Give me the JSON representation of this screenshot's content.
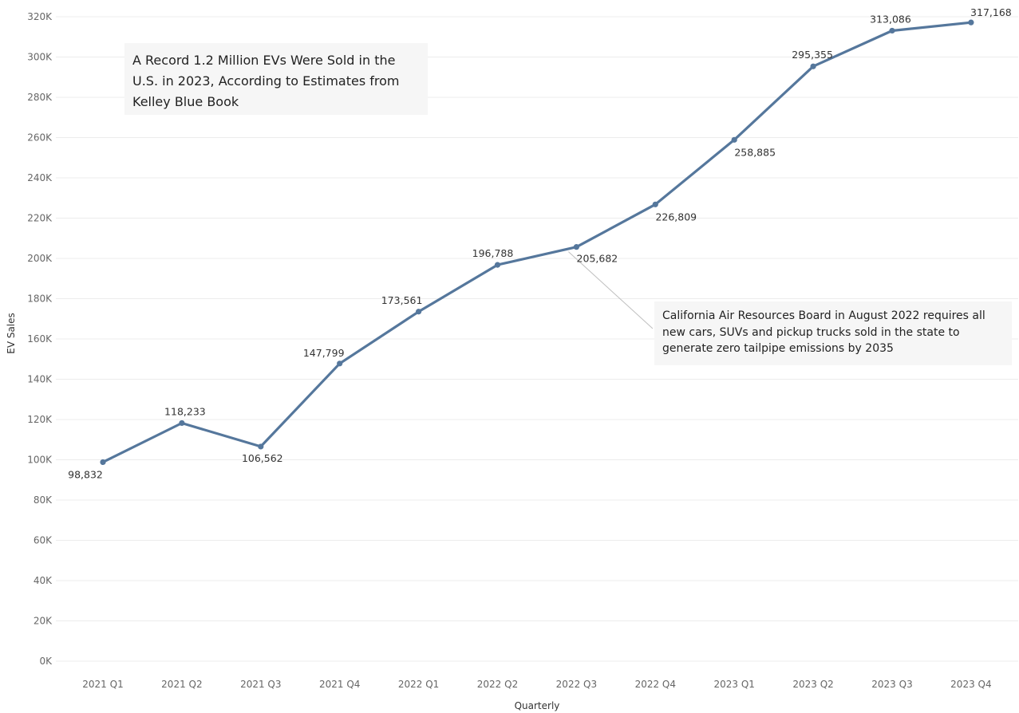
{
  "chart_data": {
    "type": "line",
    "title": "A Record 1.2 Million EVs Were Sold in the U.S. in 2023, According to Estimates from Kelley Blue Book",
    "xlabel": "Quarterly",
    "ylabel": "EV Sales",
    "ylim": [
      0,
      320000
    ],
    "yticks": [
      0,
      20000,
      40000,
      60000,
      80000,
      100000,
      120000,
      140000,
      160000,
      180000,
      200000,
      220000,
      240000,
      260000,
      280000,
      300000,
      320000
    ],
    "ytick_labels": [
      "0K",
      "20K",
      "40K",
      "60K",
      "80K",
      "100K",
      "120K",
      "140K",
      "160K",
      "180K",
      "200K",
      "220K",
      "240K",
      "260K",
      "280K",
      "300K",
      "320K"
    ],
    "categories": [
      "2021 Q1",
      "2021 Q2",
      "2021 Q3",
      "2021 Q4",
      "2022 Q1",
      "2022 Q2",
      "2022 Q3",
      "2022 Q4",
      "2023 Q1",
      "2023 Q2",
      "2023 Q3",
      "2023 Q4"
    ],
    "values": [
      98832,
      118233,
      106562,
      147799,
      173561,
      196788,
      205682,
      226809,
      258885,
      295355,
      313086,
      317168
    ],
    "data_labels": [
      "98,832",
      "118,233",
      "106,562",
      "147,799",
      "173,561",
      "196,788",
      "205,682",
      "226,809",
      "258,885",
      "295,355",
      "313,086",
      "317,168"
    ],
    "annotation": {
      "text": "California Air Resources Board in August 2022 requires all new cars, SUVs and pickup trucks sold in the state to generate zero tailpipe emissions by 2035",
      "category": "2022 Q3"
    },
    "grid": true,
    "legend": "none",
    "colors": {
      "line": "#55779c",
      "grid": "#ececec",
      "annotation_bg": "#f6f6f6"
    }
  }
}
